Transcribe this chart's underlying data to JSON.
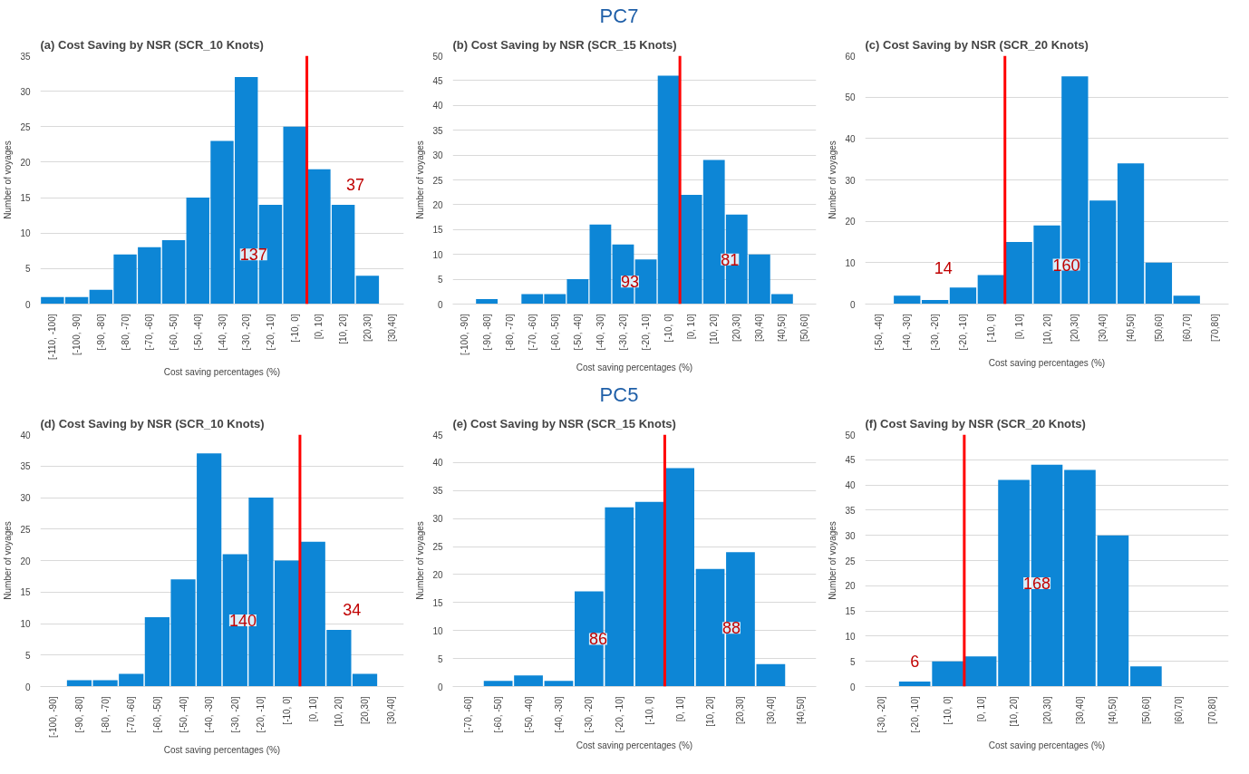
{
  "chart_data": [
    {
      "type": "other",
      "title": "PC7"
    },
    {
      "type": "bar",
      "title": "(a)  Cost Saving by NSR (SCR_10 Knots)",
      "xlabel": "Cost saving percentages (%)",
      "ylabel": "Number of voyages",
      "color": "#0d86d6",
      "categories": [
        "[-110, -100]",
        "[-100, -90]",
        "[-90, -80]",
        "[-80, -70]",
        "[-70, -60]",
        "[-60, -50]",
        "[-50, -40]",
        "[-40, -30]",
        "[-30, -20]",
        "[-20, -10]",
        "[-10, 0]",
        "[0, 10]",
        "[10, 20]",
        "[20,30]",
        "[30,40]"
      ],
      "values": [
        1,
        1,
        2,
        7,
        8,
        9,
        15,
        23,
        32,
        14,
        25,
        19,
        14,
        4,
        0
      ],
      "ylim": [
        0,
        35
      ],
      "yticks": [
        0,
        5,
        10,
        15,
        20,
        25,
        30,
        35
      ],
      "ref_lines": [
        {
          "axis": "x",
          "value": "[0, 10]",
          "color": "#ff0000"
        }
      ],
      "annotations": [
        "137",
        "37"
      ],
      "grid": "y"
    },
    {
      "type": "bar",
      "title": "(b)  Cost Saving by NSR (SCR_15 Knots)",
      "xlabel": "Cost saving percentages (%)",
      "ylabel": "Number of voyages",
      "color": "#0d86d6",
      "categories": [
        "[-100, -90]",
        "[-90, -80]",
        "[-80, -70]",
        "[-70, -60]",
        "[-60, -50]",
        "[-50, -40]",
        "[-40, -30]",
        "[-30, -20]",
        "[-20, -10]",
        "[-10, 0]",
        "[0, 10]",
        "[10, 20]",
        "[20,30]",
        "[30,40]",
        "[40,50]",
        "[50,60]"
      ],
      "values": [
        0,
        1,
        0,
        2,
        2,
        5,
        16,
        12,
        9,
        46,
        22,
        29,
        18,
        10,
        2,
        0
      ],
      "ylim": [
        0,
        50
      ],
      "yticks": [
        0,
        5,
        10,
        15,
        20,
        25,
        30,
        35,
        40,
        45,
        50
      ],
      "ref_lines": [
        {
          "axis": "x",
          "value": "[0, 10]",
          "color": "#ff0000"
        }
      ],
      "annotations": [
        "93",
        "81"
      ],
      "grid": "y"
    },
    {
      "type": "bar",
      "title": "(c)  Cost Saving by NSR (SCR_20 Knots)",
      "xlabel": "Cost saving percentages (%)",
      "ylabel": "Number of voyages",
      "color": "#0d86d6",
      "categories": [
        "[-50, -40]",
        "[-40, -30]",
        "[-30, -20]",
        "[-20, -10]",
        "[-10, 0]",
        "[0, 10]",
        "[10, 20]",
        "[20,30]",
        "[30,40]",
        "[40,50]",
        "[50,60]",
        "[60,70]",
        "[70,80]"
      ],
      "values": [
        0,
        2,
        1,
        4,
        7,
        15,
        19,
        55,
        25,
        34,
        10,
        2,
        0
      ],
      "ylim": [
        0,
        60
      ],
      "yticks": [
        0,
        10,
        20,
        30,
        40,
        50,
        60
      ],
      "ref_lines": [
        {
          "axis": "x",
          "value": "[0, 10]",
          "color": "#ff0000"
        }
      ],
      "annotations": [
        "14",
        "160"
      ],
      "grid": "y"
    },
    {
      "type": "other",
      "title": "PC5"
    },
    {
      "type": "bar",
      "title": "(d)  Cost Saving by NSR (SCR_10 Knots)",
      "xlabel": "Cost saving percentages (%)",
      "ylabel": "Number of voyages",
      "color": "#0d86d6",
      "categories": [
        "[-100, -90]",
        "[-90, -80]",
        "[-80, -70]",
        "[-70, -60]",
        "[-60, -50]",
        "[-50, -40]",
        "[-40, -30]",
        "[-30, -20]",
        "[-20, -10]",
        "[-10, 0]",
        "[0, 10]",
        "[10, 20]",
        "[20,30]",
        "[30,40]"
      ],
      "values": [
        0,
        1,
        1,
        2,
        11,
        17,
        37,
        21,
        30,
        20,
        23,
        9,
        2,
        0
      ],
      "ylim": [
        0,
        40
      ],
      "yticks": [
        0,
        5,
        10,
        15,
        20,
        25,
        30,
        35,
        40
      ],
      "ref_lines": [
        {
          "axis": "x",
          "value": "[0, 10]",
          "color": "#ff0000"
        }
      ],
      "annotations": [
        "140",
        "34"
      ],
      "grid": "y"
    },
    {
      "type": "bar",
      "title": "(e) Cost Saving by NSR (SCR_15 Knots)",
      "xlabel": "Cost saving percentages (%)",
      "ylabel": "Number of voyages",
      "color": "#0d86d6",
      "categories": [
        "[-70, -60]",
        "[-60, -50]",
        "[-50, -40]",
        "[-40, -30]",
        "[-30, -20]",
        "[-20, -10]",
        "[-10, 0]",
        "[0, 10]",
        "[10, 20]",
        "[20,30]",
        "[30,40]",
        "[40,50]"
      ],
      "values": [
        0,
        1,
        2,
        1,
        17,
        32,
        33,
        39,
        21,
        24,
        4,
        0
      ],
      "ylim": [
        0,
        45
      ],
      "yticks": [
        0,
        5,
        10,
        15,
        20,
        25,
        30,
        35,
        40,
        45
      ],
      "ref_lines": [
        {
          "axis": "x",
          "value": "[0, 10]",
          "color": "#ff0000"
        }
      ],
      "annotations": [
        "86",
        "88"
      ],
      "grid": "y"
    },
    {
      "type": "bar",
      "title": "(f) Cost Saving by NSR (SCR_20 Knots)",
      "xlabel": "Cost saving percentages (%)",
      "ylabel": "Number of voyages",
      "color": "#0d86d6",
      "categories": [
        "[-30, -20]",
        "[-20, -10]",
        "[-10, 0]",
        "[0, 10]",
        "[10, 20]",
        "[20,30]",
        "[30,40]",
        "[40,50]",
        "[50,60]",
        "[60,70]",
        "[70,80]"
      ],
      "values": [
        0,
        1,
        5,
        6,
        41,
        44,
        43,
        30,
        4,
        0,
        0
      ],
      "ylim": [
        0,
        50
      ],
      "yticks": [
        0,
        5,
        10,
        15,
        20,
        25,
        30,
        35,
        40,
        45,
        50
      ],
      "ref_lines": [
        {
          "axis": "x",
          "value": "[0, 10]",
          "color": "#ff0000"
        }
      ],
      "annotations": [
        "6",
        "168"
      ],
      "grid": "y"
    }
  ]
}
